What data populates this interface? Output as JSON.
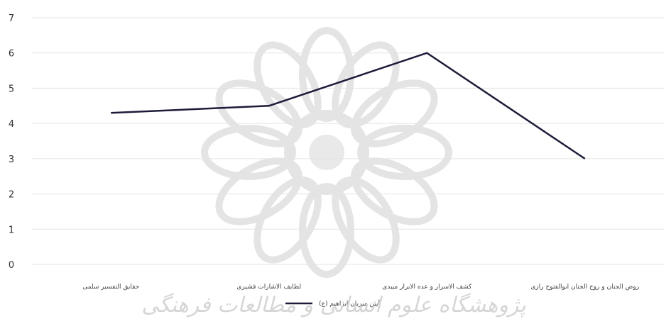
{
  "chart_data": {
    "type": "line",
    "categories": [
      "حقایق التفسیر سلمی",
      "لطایف الاشارات قشیری",
      "کشف الاسرار و عده الابرار میبدی",
      "روض الجنان و روح الجنان ابوالفتوح رازی"
    ],
    "series": [
      {
        "name": "آیین میزبان ابراهیم (ع)",
        "values": [
          4.3,
          4.5,
          6,
          3
        ]
      }
    ],
    "ylim": [
      0,
      7
    ],
    "yticks": [
      "0",
      "1",
      "2",
      "3",
      "4",
      "5",
      "6",
      "7"
    ],
    "grid": true,
    "legend_position": "bottom",
    "colors": {
      "line": "#1c1c3a",
      "grid": "#e3e3e3",
      "watermark": "#cfcfcf"
    },
    "watermark": "پژوهشگاه علوم انسانی و مطالعات فرهنگی"
  }
}
